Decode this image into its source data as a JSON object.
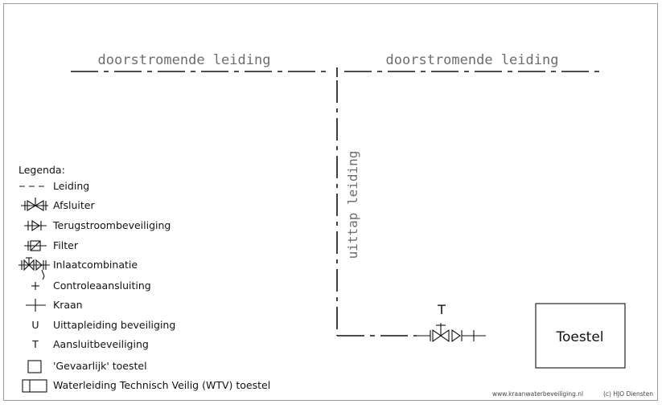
{
  "diagram": {
    "main_pipe_labels": [
      "doorstromende leiding",
      "doorstromende leiding"
    ],
    "branch_label": "uittap leiding",
    "valve_tag": "T",
    "appliance_label": "Toestel"
  },
  "legend": {
    "title": "Legenda:",
    "items": [
      {
        "icon": "dashed-line",
        "glyph": "",
        "label": "Leiding"
      },
      {
        "icon": "stop-valve",
        "glyph": "",
        "label": "Afsluiter"
      },
      {
        "icon": "check-valve",
        "glyph": "",
        "label": "Terugstroombeveiliging"
      },
      {
        "icon": "filter",
        "glyph": "",
        "label": "Filter"
      },
      {
        "icon": "inlet-combination",
        "glyph": "",
        "label": "Inlaatcombinatie"
      },
      {
        "icon": "test-point",
        "glyph": "",
        "label": "Controleaansluiting"
      },
      {
        "icon": "tap",
        "glyph": "",
        "label": "Kraan"
      },
      {
        "icon": "letter-u",
        "glyph": "U",
        "label": "Uittapleiding beveiliging"
      },
      {
        "icon": "letter-t",
        "glyph": "T",
        "label": "Aansluitbeveiliging"
      },
      {
        "icon": "square",
        "glyph": "",
        "label": "'Gevaarlijk' toestel"
      },
      {
        "icon": "split-rectangle",
        "glyph": "",
        "label": "Waterleiding Technisch Veilig (WTV) toestel"
      }
    ]
  },
  "footer": {
    "website": "www.kraanwaterbeveiliging.nl",
    "copyright": "(c) HJO Diensten"
  }
}
